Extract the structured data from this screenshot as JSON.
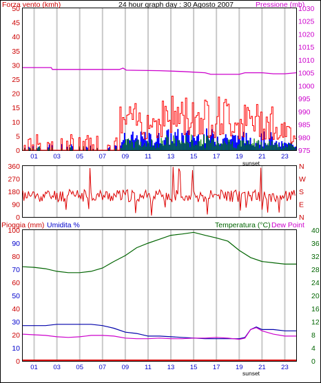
{
  "header": {
    "left_label": "Forza vento (kmh)",
    "title": "24 hour graph day : 30 Agosto 2007",
    "right_label": "Pressione (mb)"
  },
  "lower_header": {
    "rain_label": "Pioggia (mm)",
    "humidity_label": "Umidita %",
    "temperature_label": "Temperatura (°C)",
    "dewpoint_label": "Dew Point"
  },
  "sunset_label": "sunset",
  "hour_ticks": [
    "01",
    "03",
    "05",
    "07",
    "09",
    "11",
    "13",
    "15",
    "17",
    "19",
    "21",
    "23"
  ],
  "colors": {
    "wind_speed": "#ff0000",
    "wind_gust": "#0000ff",
    "wind_avg": "#008000",
    "pressure": "#cc00cc",
    "direction": "#dd0000",
    "humidity": "#0000aa",
    "temperature": "#006400",
    "dewpoint": "#cc00cc",
    "rain": "#dd0000",
    "axis_red": "#cc0000",
    "axis_purple": "#cc00cc",
    "axis_blue": "#0000cc",
    "axis_green": "#006400",
    "grid": "#c8c8c8"
  },
  "chart_data": [
    {
      "type": "bar",
      "name": "wind",
      "xlabel": "",
      "ylabel": "Forza vento (kmh)",
      "ylim": [
        0,
        50
      ],
      "y_ticks": [
        "0",
        "5",
        "10",
        "15",
        "20",
        "25",
        "30",
        "35",
        "40",
        "45",
        "50"
      ],
      "y2label": "Pressione (mb)",
      "y2lim": [
        975,
        1030
      ],
      "y2_ticks": [
        "975",
        "980",
        "985",
        "990",
        "995",
        "1000",
        "1005",
        "1010",
        "1015",
        "1020",
        "1025",
        "1030"
      ],
      "x_hours": [
        0,
        24
      ],
      "wind_segments": [
        {
          "from": 0.0,
          "to": 8.5,
          "speed": 4,
          "gust": 2,
          "avg": 1
        },
        {
          "from": 8.5,
          "to": 12,
          "speed": 12,
          "gust": 6,
          "avg": 3
        },
        {
          "from": 12,
          "to": 18,
          "speed": 14,
          "gust": 7,
          "avg": 4
        },
        {
          "from": 18,
          "to": 22,
          "speed": 12,
          "gust": 6,
          "avg": 3
        },
        {
          "from": 22,
          "to": 24,
          "speed": 7,
          "gust": 3,
          "avg": 2
        }
      ],
      "pressure": {
        "x": [
          0,
          2.5,
          2.6,
          8.5,
          8.8,
          9.1,
          12,
          14,
          16,
          16.5,
          19,
          19.5,
          21,
          22,
          23,
          24
        ],
        "y": [
          1007.0,
          1007.0,
          1006.3,
          1006.3,
          1006.8,
          1006.0,
          1005.8,
          1005.5,
          1005.0,
          1004.4,
          1004.4,
          1005.0,
          1005.0,
          1004.6,
          1004.6,
          1005.0
        ]
      }
    },
    {
      "type": "line",
      "name": "wind_direction",
      "ylabel": "",
      "ylim": [
        0,
        360
      ],
      "y_ticks": [
        "0",
        "90",
        "180",
        "270",
        "360"
      ],
      "y2_ticks": [
        "N",
        "E",
        "S",
        "W",
        "N"
      ],
      "typical_value": 150
    },
    {
      "type": "line",
      "name": "climate",
      "ylabel_left_rain": "Pioggia (mm)",
      "ylabel_left_humidity": "Umidita %",
      "ylabel_right": "Temperatura (°C)",
      "rain_ticks": [
        "0",
        "20",
        "40",
        "60",
        "80",
        "100"
      ],
      "humidity_ticks": [
        "0",
        "10",
        "20",
        "30",
        "40",
        "50",
        "60",
        "70",
        "80",
        "90",
        "100"
      ],
      "temp_ticks": [
        "0",
        "4",
        "8",
        "12",
        "16",
        "20",
        "24",
        "28",
        "32",
        "36",
        "40"
      ],
      "humidity_lim": [
        0,
        100
      ],
      "temp_lim": [
        0,
        40
      ],
      "series": [
        {
          "name": "Umidita %",
          "x": [
            0,
            1,
            2,
            3,
            4,
            5,
            6,
            7,
            7.5,
            8,
            9,
            10,
            11,
            12,
            14,
            16,
            18,
            19,
            19.5,
            20,
            20.5,
            21,
            22,
            23,
            24
          ],
          "y": [
            27,
            27,
            27,
            28,
            28,
            28,
            28,
            27,
            26,
            25,
            22,
            21,
            19,
            19,
            18,
            17,
            17,
            17,
            18,
            24,
            26,
            24,
            24,
            23,
            23
          ]
        },
        {
          "name": "Temperatura",
          "x": [
            0,
            1,
            2,
            3,
            4,
            5,
            6,
            7,
            8,
            9,
            10,
            11,
            12,
            13,
            14,
            15,
            16,
            17,
            18,
            19,
            20,
            21,
            22,
            23,
            24
          ],
          "y": [
            28.8,
            28.6,
            28.2,
            27.4,
            27.0,
            27.0,
            27.4,
            28.4,
            30.4,
            32.2,
            34.6,
            36.0,
            37.2,
            38.4,
            38.8,
            39.3,
            38.4,
            37.6,
            36.6,
            33.8,
            31.6,
            30.4,
            30.0,
            29.6,
            29.6
          ]
        },
        {
          "name": "Dew Point",
          "x": [
            0,
            1,
            2,
            3,
            4,
            5,
            6,
            7,
            8,
            9,
            10,
            11,
            12,
            13,
            14,
            15,
            16,
            17,
            18,
            19,
            19.5,
            20,
            20.5,
            21,
            22,
            23,
            24
          ],
          "y": [
            8.2,
            8.0,
            7.8,
            7.4,
            7.2,
            7.4,
            7.8,
            7.8,
            7.6,
            7.0,
            6.8,
            6.8,
            7.0,
            6.8,
            6.8,
            7.0,
            7.0,
            7.2,
            7.0,
            6.6,
            7.0,
            9.6,
            10.2,
            9.2,
            8.2,
            7.6,
            7.6
          ]
        },
        {
          "name": "Pioggia",
          "x": [
            0,
            24
          ],
          "y": [
            0,
            0
          ]
        }
      ]
    }
  ]
}
